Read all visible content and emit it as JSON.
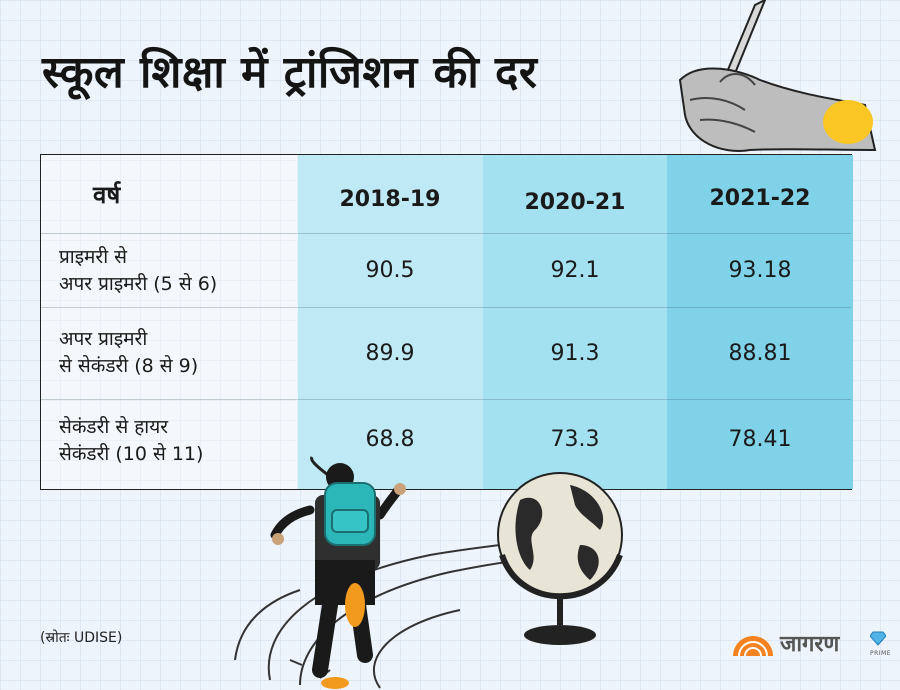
{
  "title": "स्कूल शिक्षा में ट्रांजिशन की दर",
  "table": {
    "header": {
      "label": "वर्ष",
      "years": [
        "2018-19",
        "2020-21",
        "2021-22"
      ]
    },
    "rows": [
      {
        "label_line1": "प्राइमरी से",
        "label_line2": "अपर प्राइमरी (5 से 6)",
        "values": [
          "90.5",
          "92.1",
          "93.18"
        ]
      },
      {
        "label_line1": "अपर प्राइमरी",
        "label_line2": "से सेकंडरी (8 से 9)",
        "values": [
          "89.9",
          "91.3",
          "88.81"
        ]
      },
      {
        "label_line1": "सेकंडरी से हायर",
        "label_line2": "सेकंडरी (10 से 11)",
        "values": [
          "68.8",
          "73.3",
          "78.41"
        ]
      }
    ]
  },
  "source": "(स्रोतः UDISE)",
  "logo": {
    "text": "जागरण",
    "sub": "PRIME"
  },
  "colors": {
    "background": "#eef4fb",
    "column_2018": "#bfe9f4",
    "column_2020": "#a3e0f0",
    "column_2021": "#7fd2e8",
    "logo_orange": "#f58220"
  },
  "icons": [
    "hand-writing-pencil-illustration",
    "running-girl-backpack-illustration",
    "globe-illustration",
    "jagran-sunrise-logo-icon",
    "diamond-icon"
  ]
}
